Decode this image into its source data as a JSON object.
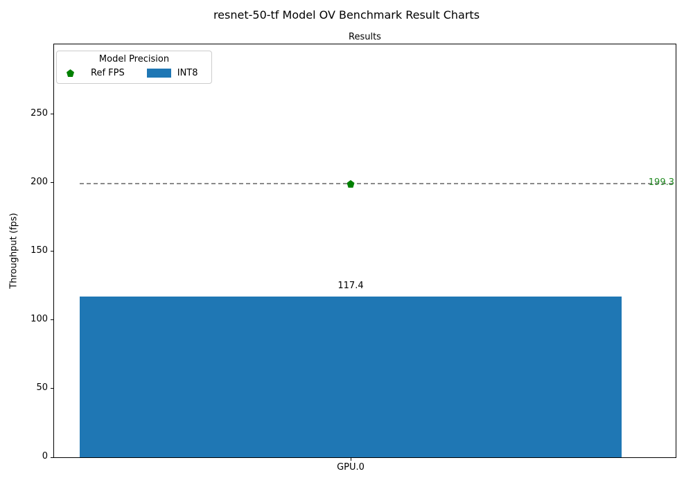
{
  "title": "resnet-50-tf Model OV Benchmark Result Charts",
  "axes_title": "Results",
  "ylabel": "Throughput (fps)",
  "legend": {
    "title": "Model Precision",
    "items": [
      {
        "label": "Ref FPS",
        "marker": "pentagon",
        "color": "#008000"
      },
      {
        "label": "INT8",
        "marker": "rect",
        "color": "#1f77b4"
      }
    ]
  },
  "chart_data": {
    "type": "bar",
    "title": "Results",
    "categories": [
      "GPU.0"
    ],
    "series": [
      {
        "name": "INT8",
        "type": "bar",
        "values": [
          117.4
        ],
        "color": "#1f77b4"
      },
      {
        "name": "Ref FPS",
        "type": "reference_line",
        "values": [
          199.3
        ],
        "color": "#008000",
        "label_color": "#228b22",
        "line_color": "#8a8a8a",
        "line_style": "dashed",
        "marker": "pentagon"
      }
    ],
    "bar_label": "117.4",
    "ref_label": "199.3",
    "xlabel": "",
    "ylabel": "Throughput (fps)",
    "yticks": [
      0,
      50,
      100,
      150,
      200,
      250
    ],
    "ylim": [
      0,
      301
    ],
    "grid": false,
    "legend_position": "upper left"
  }
}
